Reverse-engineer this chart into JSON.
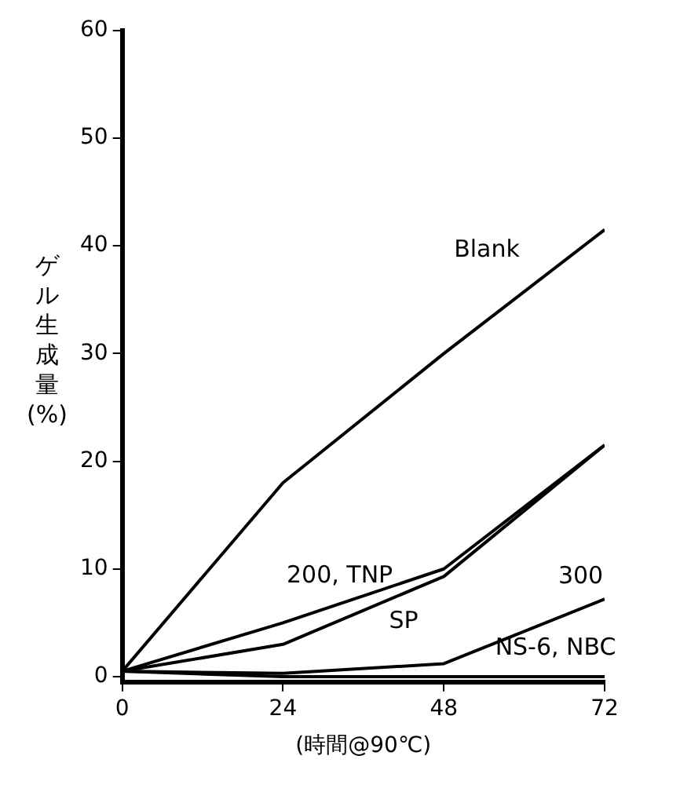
{
  "chart_data": {
    "type": "line",
    "xlabel": "(時間@90℃)",
    "ylabel": "ゲル生成量(%)",
    "x": [
      0,
      24,
      48,
      72
    ],
    "series": [
      {
        "name": "Blank",
        "color": "#000000",
        "values": [
          0.5,
          18,
          30,
          41.5
        ]
      },
      {
        "name": "200, TNP",
        "color": "#000000",
        "values": [
          0.5,
          5,
          10,
          21.5
        ]
      },
      {
        "name": "SP",
        "color": "#000000",
        "values": [
          0.5,
          3,
          9.3,
          21.5
        ]
      },
      {
        "name": "300",
        "color": "#000000",
        "values": [
          0.5,
          0.3,
          1.2,
          7.2
        ]
      },
      {
        "name": "NS-6, NBC",
        "color": "#000000",
        "values": [
          0.5,
          0,
          0,
          0
        ]
      }
    ],
    "xlim": [
      0,
      72
    ],
    "xticks": [
      0,
      24,
      48,
      72
    ],
    "ylim": [
      -0.5,
      60
    ],
    "yticks": [
      0,
      10,
      20,
      30,
      40,
      50,
      60
    ],
    "grid": false,
    "legend": false,
    "marker": "none",
    "line_style": "solid"
  }
}
